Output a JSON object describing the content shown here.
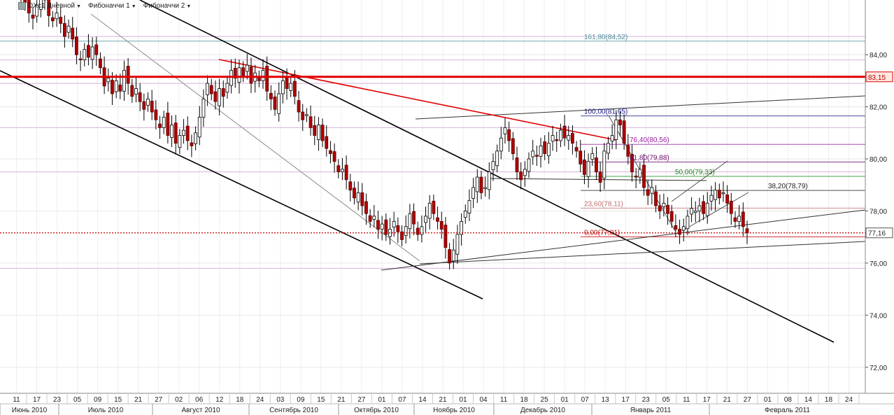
{
  "legend": [
    {
      "label": "DXc1 Дневной"
    },
    {
      "label": "Фибоначчи 1"
    },
    {
      "label": "Фибоначчи 2"
    }
  ],
  "chart_data": {
    "type": "candlestick",
    "title": "",
    "ylim": [
      71,
      86.1
    ],
    "y_ticks": [
      72,
      74,
      76,
      78,
      80,
      82,
      84
    ],
    "price_markers": [
      {
        "value": 83.15,
        "label": "83,15",
        "color": "#e00000"
      },
      {
        "value": 77.16,
        "label": "77,16",
        "color": "#444444"
      }
    ],
    "fib_levels": [
      {
        "value": 84.52,
        "label": "161,80(84,52)",
        "color": "#4a8f9a"
      },
      {
        "value": 81.65,
        "label": "100,00(81,65)",
        "color": "#1a1a80"
      },
      {
        "value": 80.56,
        "label": "76,40(80,56)",
        "color": "#9a1aa0"
      },
      {
        "value": 79.88,
        "label": "61,80(79,88)",
        "color": "#6a0a6a"
      },
      {
        "value": 79.33,
        "label": "50,00(79,33)",
        "color": "#1a8a1a"
      },
      {
        "value": 78.79,
        "label": "38,20(78,79)",
        "color": "#222222"
      },
      {
        "value": 78.11,
        "label": "23,60(78,11)",
        "color": "#c07070"
      },
      {
        "value": 77.01,
        "label": "0,00(77,01)",
        "color": "#c00000"
      }
    ],
    "x_day_ticks": [
      "11",
      "17",
      "23",
      "05",
      "09",
      "15",
      "21",
      "27",
      "02",
      "06",
      "12",
      "18",
      "24",
      "03",
      "09",
      "15",
      "21",
      "27",
      "01",
      "07",
      "14",
      "21",
      "01",
      "04",
      "11",
      "18",
      "25",
      "01",
      "07",
      "13",
      "17",
      "23",
      "05",
      "11",
      "17",
      "21",
      "27",
      "01",
      "08",
      "14",
      "18",
      "24"
    ],
    "x_month_labels": [
      "Июнь 2010",
      "Июль 2010",
      "Август 2010",
      "Сентябрь 2010",
      "Октябрь 2010",
      "Ноябрь 2010",
      "Декабрь 2010",
      "Январь 2011",
      "Февраль 2011"
    ],
    "candles_close": [
      86.2,
      86.0,
      85.6,
      85.4,
      85.9,
      86.3,
      86.1,
      85.5,
      85.3,
      85.6,
      85.2,
      84.7,
      85.1,
      84.6,
      84.0,
      83.8,
      84.2,
      83.9,
      84.3,
      84.0,
      83.5,
      82.8,
      83.1,
      82.5,
      83.0,
      82.6,
      83.4,
      82.9,
      82.4,
      82.7,
      82.2,
      81.9,
      82.3,
      81.8,
      81.5,
      81.2,
      81.6,
      80.9,
      81.3,
      80.6,
      80.9,
      81.1,
      80.7,
      80.5,
      81.0,
      81.6,
      82.3,
      82.9,
      82.5,
      82.2,
      82.7,
      82.4,
      82.9,
      83.4,
      83.1,
      83.5,
      83.2,
      83.6,
      82.9,
      83.3,
      83.0,
      83.4,
      82.6,
      82.3,
      81.9,
      82.5,
      83.0,
      82.7,
      82.9,
      82.4,
      81.8,
      81.5,
      81.7,
      81.2,
      80.9,
      81.3,
      80.7,
      80.4,
      80.2,
      79.9,
      79.5,
      79.6,
      79.2,
      78.8,
      78.5,
      78.7,
      78.2,
      77.9,
      77.6,
      77.8,
      77.3,
      77.5,
      77.1,
      77.3,
      77.6,
      77.2,
      76.9,
      77.4,
      77.9,
      77.5,
      77.1,
      77.4,
      77.8,
      78.3,
      77.9,
      77.6,
      77.3,
      76.6,
      76.0,
      76.5,
      77.1,
      77.6,
      78.0,
      78.4,
      78.9,
      79.3,
      78.7,
      78.9,
      79.5,
      79.9,
      80.3,
      80.8,
      81.2,
      80.7,
      80.2,
      79.5,
      79.2,
      79.6,
      80.0,
      80.3,
      80.1,
      80.5,
      80.2,
      80.6,
      80.9,
      80.7,
      81.1,
      80.8,
      80.9,
      80.6,
      80.3,
      79.8,
      79.4,
      79.9,
      80.2,
      79.5,
      79.1,
      80.3,
      80.6,
      80.9,
      81.5,
      81.3,
      80.6,
      80.1,
      79.5,
      79.3,
      79.6,
      78.9,
      78.6,
      78.9,
      78.2,
      78.0,
      78.3,
      77.9,
      77.6,
      77.3,
      77.1,
      77.4,
      77.8,
      78.1,
      78.0,
      78.2,
      77.9,
      78.3,
      78.6,
      78.8,
      78.5,
      78.7,
      78.3,
      77.9,
      77.6,
      77.8,
      77.4,
      77.16
    ]
  }
}
